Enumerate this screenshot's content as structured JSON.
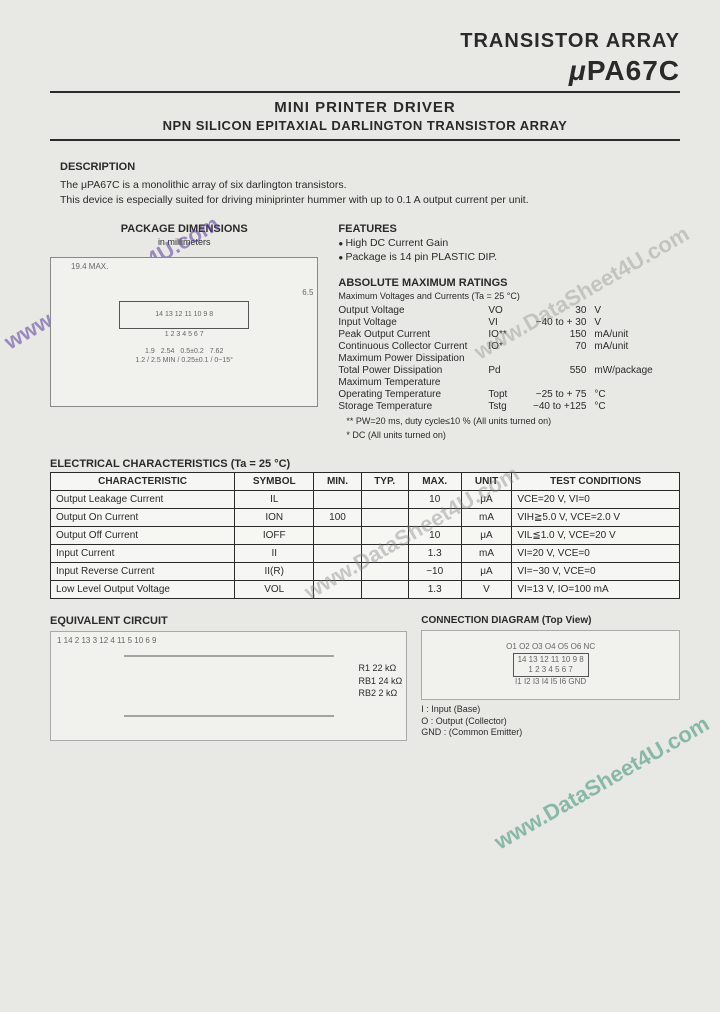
{
  "header": {
    "category": "TRANSISTOR ARRAY",
    "part": "PA67C",
    "mu": "μ"
  },
  "subhead": {
    "line1": "MINI PRINTER DRIVER",
    "line2": "NPN SILICON EPITAXIAL DARLINGTON TRANSISTOR ARRAY"
  },
  "description": {
    "title": "DESCRIPTION",
    "l1": "The μPA67C is a monolithic array of six darlington transistors.",
    "l2": "This device is especially suited for driving miniprinter hummer with up to 0.1 A output current per unit."
  },
  "package": {
    "title": "PACKAGE DIMENSIONS",
    "sub": "in millimeters",
    "dims_top": "19.4 MAX.",
    "pins_top": "14 13 12 11 10 9 8",
    "pins_bot": "1 2 3 4 5 6 7",
    "side_h": "6.5",
    "pitch": "2.54",
    "lead": "1.9",
    "width": "0.5±0.2",
    "body": "7.62",
    "thk": "1.2",
    "hmin": "2.5 MIN",
    "h2": "0.5±0.2",
    "tol": "0.25±0.1",
    "angle": "0~15°"
  },
  "features": {
    "title": "FEATURES",
    "f1": "High DC Current Gain",
    "f2": "Package is 14 pin PLASTIC DIP."
  },
  "ratings": {
    "title": "ABSOLUTE MAXIMUM RATINGS",
    "sub": "Maximum Voltages and Currents (Ta = 25 °C)",
    "rows": [
      {
        "l": "Output Voltage",
        "s": "VO",
        "v": "30",
        "u": "V"
      },
      {
        "l": "Input Voltage",
        "s": "VI",
        "v": "−40 to + 30",
        "u": "V"
      },
      {
        "l": "Peak Output Current",
        "s": "IO**",
        "v": "150",
        "u": "mA/unit"
      },
      {
        "l": "Continuous Collector Current",
        "s": "IO*",
        "v": "70",
        "u": "mA/unit"
      },
      {
        "l": "Maximum Power Dissipation",
        "s": "",
        "v": "",
        "u": ""
      },
      {
        "l": "  Total Power Dissipation",
        "s": "Pd",
        "v": "550",
        "u": "mW/package"
      },
      {
        "l": "Maximum Temperature",
        "s": "",
        "v": "",
        "u": ""
      },
      {
        "l": "  Operating Temperature",
        "s": "Topt",
        "v": "−25 to + 75",
        "u": "°C"
      },
      {
        "l": "  Storage Temperature",
        "s": "Tstg",
        "v": "−40 to +125",
        "u": "°C"
      }
    ],
    "note1": "** PW=20 ms, duty cycle≤10 % (All units turned on)",
    "note2": "* DC (All units turned on)"
  },
  "elec": {
    "title": "ELECTRICAL CHARACTERISTICS (Ta = 25 °C)",
    "headers": [
      "CHARACTERISTIC",
      "SYMBOL",
      "MIN.",
      "TYP.",
      "MAX.",
      "UNIT",
      "TEST CONDITIONS"
    ],
    "rows": [
      [
        "Output Leakage Current",
        "IL",
        "",
        "",
        "10",
        "μA",
        "VCE=20 V, VI=0"
      ],
      [
        "Output On Current",
        "ION",
        "100",
        "",
        "",
        "mA",
        "VIH≧5.0 V, VCE=2.0 V"
      ],
      [
        "Output Off Current",
        "IOFF",
        "",
        "",
        "10",
        "μA",
        "VIL≦1.0 V, VCE=20 V"
      ],
      [
        "Input Current",
        "II",
        "",
        "",
        "1.3",
        "mA",
        "VI=20 V, VCE=0"
      ],
      [
        "Input Reverse Current",
        "II(R)",
        "",
        "",
        "−10",
        "μA",
        "VI=−30 V, VCE=0"
      ],
      [
        "Low Level Output Voltage",
        "VOL",
        "",
        "",
        "1.3",
        "V",
        "VI=13 V, IO=100 mA"
      ]
    ]
  },
  "eqcircuit": {
    "title": "EQUIVALENT CIRCUIT",
    "r1": "R1   22 kΩ",
    "rb1": "RB1  24 kΩ",
    "rb2": "RB2   2 kΩ",
    "pins": "1 14 2 13 3 12 4 11 5 10 6 9"
  },
  "conn": {
    "title": "CONNECTION DIAGRAM (Top View)",
    "top_labels": "O1 O2 O3 O4 O5 O6 NC",
    "top_pins": "14 13 12 11 10 9 8",
    "bot_pins": "1 2 3 4 5 6 7",
    "bot_labels": "I1 I2 I3 I4 I5 I6 GND",
    "key_i": "I  : Input (Base)",
    "key_o": "O : Output (Collector)",
    "key_g": "GND : (Common Emitter)"
  },
  "watermark": "www.DataSheet4U.com"
}
